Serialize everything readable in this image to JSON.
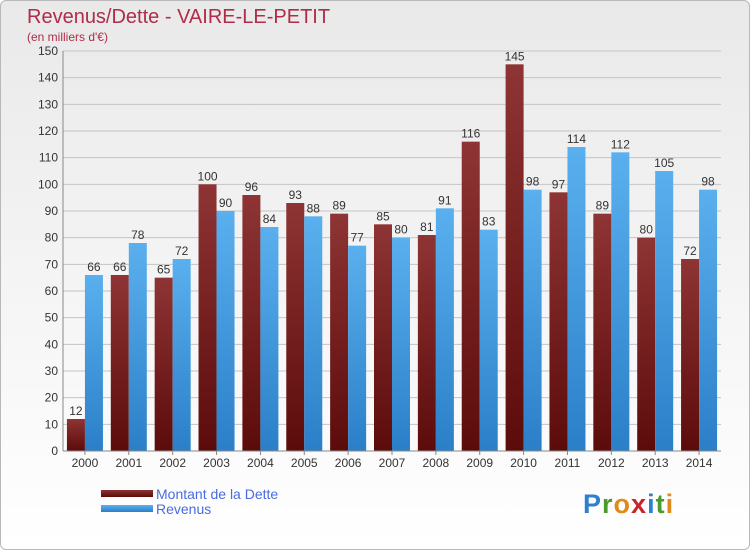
{
  "header": {
    "title": "Revenus/Dette - VAIRE-LE-PETIT",
    "subtitle": "(en milliers d'€)"
  },
  "legend": {
    "debt_label": "Montant de la Dette",
    "revenue_label": "Revenus"
  },
  "logo": {
    "letters": [
      "P",
      "r",
      "o",
      "x",
      "i",
      "t",
      "i"
    ],
    "colors": [
      "#2f7fd1",
      "#4a9a2c",
      "#e08a1c",
      "#c8242c",
      "#2f7fd1",
      "#4a9a2c",
      "#e08a1c"
    ]
  },
  "colors": {
    "debt_dark": "#5c0b0b",
    "debt_light": "#8e3434",
    "revenue_dark": "#2b7fc8",
    "revenue_light": "#5ab0ee",
    "grid": "#c4c4c4",
    "label": "#333333"
  },
  "chart_data": {
    "type": "bar",
    "categories": [
      "2000",
      "2001",
      "2002",
      "2003",
      "2004",
      "2005",
      "2006",
      "2007",
      "2008",
      "2009",
      "2010",
      "2011",
      "2012",
      "2013",
      "2014"
    ],
    "series": [
      {
        "name": "Montant de la Dette",
        "values": [
          12,
          66,
          65,
          100,
          96,
          93,
          89,
          85,
          81,
          116,
          145,
          97,
          89,
          80,
          72
        ]
      },
      {
        "name": "Revenus",
        "values": [
          66,
          78,
          72,
          90,
          84,
          88,
          77,
          80,
          91,
          83,
          98,
          114,
          112,
          105,
          98
        ]
      }
    ],
    "title": "Revenus/Dette - VAIRE-LE-PETIT",
    "subtitle": "(en milliers d'€)",
    "ylim": [
      0,
      150
    ],
    "yticks": [
      0,
      10,
      20,
      30,
      40,
      50,
      60,
      70,
      80,
      90,
      100,
      110,
      120,
      130,
      140,
      150
    ],
    "grid": true,
    "legend_position": "bottom-left"
  }
}
